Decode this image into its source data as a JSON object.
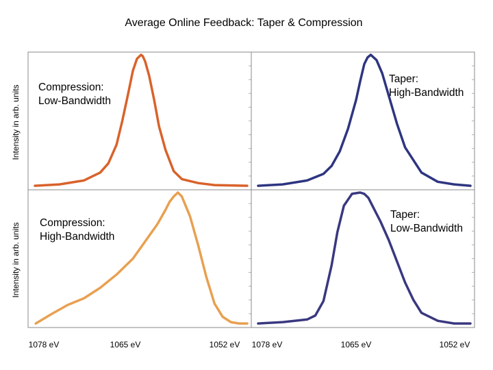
{
  "chart_title": "Average Online Feedback: Taper & Compression",
  "chart_data": {
    "type": "line",
    "title": "Average Online Feedback: Taper & Compression",
    "xlim": [
      1078,
      1052
    ],
    "x_ticks": [
      "1078 eV",
      "1065 eV",
      "1052 eV"
    ],
    "ylabel": "Intensity in arb. units",
    "grid": false,
    "panels": [
      {
        "id": "top-left",
        "name": "Compression:\nLow-Bandwidth",
        "label_lines": [
          "Compression:",
          "Low-Bandwidth"
        ],
        "color": "#d9622b",
        "x": [
          1078,
          1075,
          1072,
          1070,
          1069,
          1068,
          1067.3,
          1066.6,
          1066,
          1065.5,
          1065,
          1064.8,
          1064.5,
          1064,
          1063.4,
          1062.8,
          1062,
          1061,
          1060,
          1058,
          1056,
          1052
        ],
        "y": [
          0.01,
          0.02,
          0.05,
          0.11,
          0.18,
          0.32,
          0.5,
          0.7,
          0.88,
          0.97,
          1.0,
          0.99,
          0.95,
          0.84,
          0.66,
          0.46,
          0.28,
          0.12,
          0.06,
          0.03,
          0.015,
          0.01
        ]
      },
      {
        "id": "top-right",
        "name": "Taper:\nHigh-Bandwidth",
        "label_lines": [
          "Taper:",
          "High-Bandwidth"
        ],
        "color": "#2e3580",
        "x": [
          1078,
          1075,
          1072,
          1070,
          1069,
          1068,
          1067,
          1066,
          1065.5,
          1065,
          1064.6,
          1064.2,
          1063.5,
          1062.8,
          1062,
          1061,
          1060,
          1058,
          1056,
          1054,
          1052
        ],
        "y": [
          0.01,
          0.02,
          0.05,
          0.1,
          0.16,
          0.27,
          0.44,
          0.66,
          0.8,
          0.93,
          0.98,
          1.0,
          0.96,
          0.86,
          0.69,
          0.48,
          0.3,
          0.11,
          0.04,
          0.02,
          0.01
        ]
      },
      {
        "id": "bottom-left",
        "name": "Compression:\nHigh-Bandwidth",
        "label_lines": [
          "Compression:",
          "High-Bandwidth"
        ],
        "color": "#e8a050",
        "x": [
          1077.9,
          1076,
          1074,
          1072,
          1070,
          1068,
          1066,
          1064.5,
          1063,
          1062,
          1061.5,
          1061,
          1060.5,
          1060,
          1059,
          1058,
          1057,
          1056,
          1055,
          1054,
          1053,
          1052
        ],
        "y": [
          0.01,
          0.08,
          0.15,
          0.2,
          0.28,
          0.38,
          0.5,
          0.63,
          0.76,
          0.87,
          0.93,
          0.97,
          1.0,
          0.97,
          0.82,
          0.6,
          0.36,
          0.16,
          0.06,
          0.02,
          0.01,
          0.01
        ]
      },
      {
        "id": "bottom-right",
        "name": "Taper:\nLow-Bandwidth",
        "label_lines": [
          "Taper:",
          "Low-Bandwidth"
        ],
        "color": "#3a3880",
        "x": [
          1078,
          1075,
          1072,
          1071,
          1070,
          1069,
          1068.3,
          1067.5,
          1066.5,
          1065.5,
          1065,
          1064.5,
          1064,
          1063,
          1062,
          1061,
          1060,
          1059,
          1058,
          1056,
          1054,
          1052
        ],
        "y": [
          0.01,
          0.02,
          0.04,
          0.07,
          0.18,
          0.45,
          0.7,
          0.9,
          0.99,
          1.0,
          0.99,
          0.96,
          0.9,
          0.78,
          0.64,
          0.48,
          0.32,
          0.19,
          0.09,
          0.03,
          0.01,
          0.01
        ]
      }
    ]
  }
}
